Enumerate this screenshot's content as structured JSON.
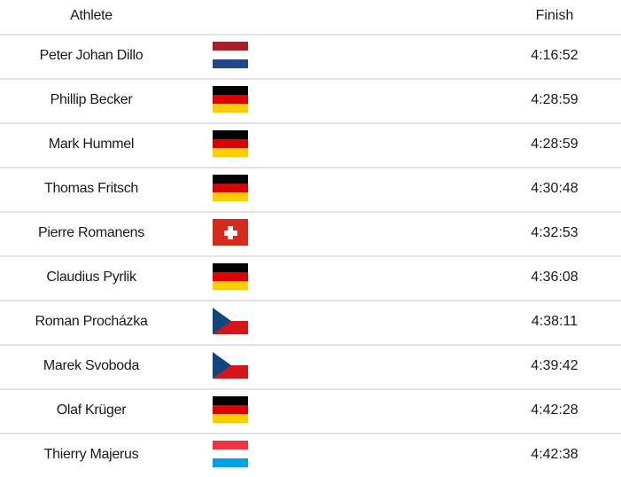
{
  "header": {
    "athlete": "Athlete",
    "finish": "Finish"
  },
  "colors": {
    "nl": [
      "#ae1c28",
      "#ffffff",
      "#21468b"
    ],
    "de": [
      "#000000",
      "#dd0000",
      "#ffce00"
    ],
    "lu": [
      "#ef3340",
      "#ffffff",
      "#00a2e1"
    ]
  },
  "rows": [
    {
      "name": "Peter Johan Dillo",
      "country": "nl",
      "finish": "4:16:52"
    },
    {
      "name": "Phillip Becker",
      "country": "de",
      "finish": "4:28:59"
    },
    {
      "name": "Mark Hummel",
      "country": "de",
      "finish": "4:28:59"
    },
    {
      "name": "Thomas Fritsch",
      "country": "de",
      "finish": "4:30:48"
    },
    {
      "name": "Pierre Romanens",
      "country": "ch",
      "finish": "4:32:53"
    },
    {
      "name": "Claudius Pyrlik",
      "country": "de",
      "finish": "4:36:08"
    },
    {
      "name": "Roman Procházka",
      "country": "cz",
      "finish": "4:38:11"
    },
    {
      "name": "Marek Svoboda",
      "country": "cz",
      "finish": "4:39:42"
    },
    {
      "name": "Olaf Krüger",
      "country": "de",
      "finish": "4:42:28"
    },
    {
      "name": "Thierry Majerus",
      "country": "lu",
      "finish": "4:42:38"
    }
  ]
}
